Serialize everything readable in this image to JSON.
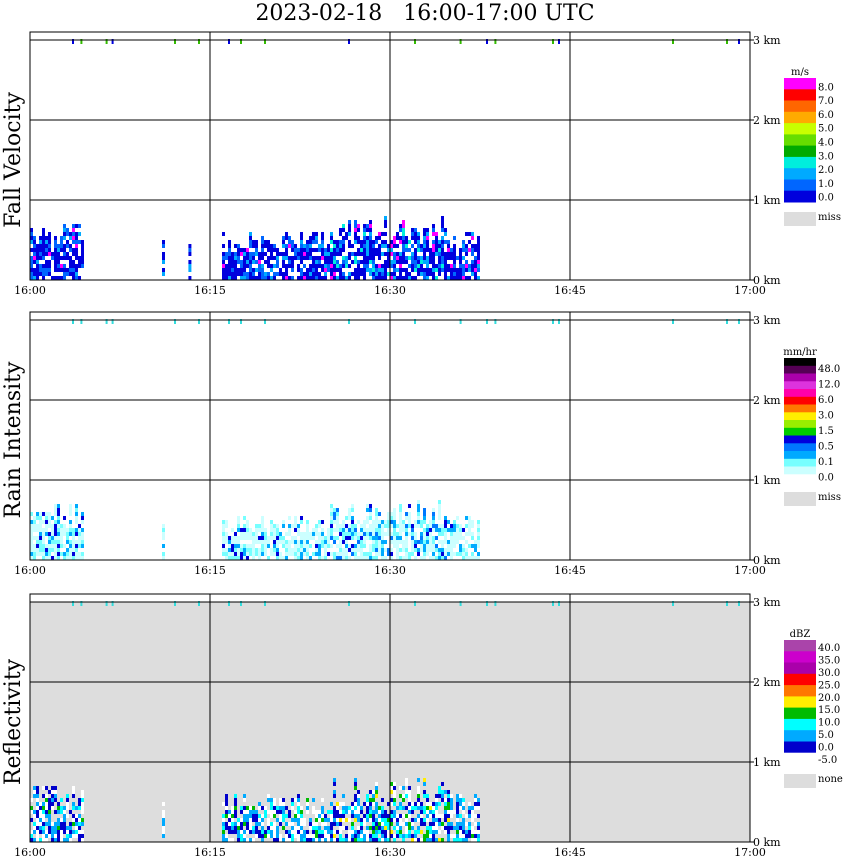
{
  "title": "2023-02-18   16:00-17:00 UTC",
  "chart_data": [
    {
      "type": "heatmap",
      "ylabel": "Fall Velocity",
      "x_ticks": [
        "16:00",
        "16:15",
        "16:30",
        "16:45",
        "17:00"
      ],
      "y_ticks": [
        "0 km",
        "1 km",
        "2 km",
        "3 km"
      ],
      "ylim_km": [
        0,
        3
      ],
      "xlim_minutes": [
        0,
        60
      ],
      "background": "#ffffff",
      "colorbar": {
        "unit": "m/s",
        "labels": [
          "8.0",
          "7.0",
          "6.0",
          "5.0",
          "4.0",
          "3.0",
          "2.0",
          "1.0",
          "0.0"
        ],
        "colors": [
          "#ff00ff",
          "#ff0000",
          "#ff6600",
          "#ffaa00",
          "#c8ff00",
          "#66dd00",
          "#00aa00",
          "#00eedd",
          "#00aaff",
          "#0066ff",
          "#0000dd"
        ],
        "missing_label": "miss",
        "missing_color": "#dddddd"
      },
      "echo_regions": [
        {
          "t0": 0.0,
          "t1": 4.5,
          "top_km": 0.72,
          "level": "low"
        },
        {
          "t0": 11.0,
          "t1": 11.2,
          "top_km": 0.5,
          "level": "low"
        },
        {
          "t0": 13.2,
          "t1": 13.4,
          "top_km": 0.55,
          "level": "low"
        },
        {
          "t0": 16.0,
          "t1": 25.0,
          "top_km": 0.6,
          "level": "low"
        },
        {
          "t0": 25.0,
          "t1": 35.0,
          "top_km": 0.8,
          "level": "mid"
        },
        {
          "t0": 35.0,
          "t1": 37.5,
          "top_km": 0.6,
          "level": "low"
        }
      ],
      "top_marks_minutes": [
        3.5,
        4.2,
        6.3,
        6.8,
        12.0,
        14.0,
        16.5,
        17.5,
        19.5,
        26.5,
        32.0,
        35.8,
        38.0,
        38.7,
        43.5,
        44.0,
        53.5,
        58.0,
        59.0
      ]
    },
    {
      "type": "heatmap",
      "ylabel": "Rain Intensity",
      "x_ticks": [
        "16:00",
        "16:15",
        "16:30",
        "16:45",
        "17:00"
      ],
      "y_ticks": [
        "0 km",
        "1 km",
        "2 km",
        "3 km"
      ],
      "ylim_km": [
        0,
        3
      ],
      "xlim_minutes": [
        0,
        60
      ],
      "background": "#ffffff",
      "colorbar": {
        "unit": "mm/hr",
        "labels": [
          "48.0",
          "12.0",
          "6.0",
          "3.0",
          "1.5",
          "0.5",
          "0.1",
          "0.0"
        ],
        "colors": [
          "#000000",
          "#550055",
          "#aa00aa",
          "#dd33dd",
          "#ff00aa",
          "#ff0000",
          "#ff7700",
          "#ffee00",
          "#99ee00",
          "#00cc00",
          "#0000dd",
          "#0077ff",
          "#00aaff",
          "#77ffff",
          "#ccffff",
          "#ffffff"
        ],
        "missing_label": "miss",
        "missing_color": "#dddddd"
      },
      "echo_regions": [
        {
          "t0": 0.0,
          "t1": 4.5,
          "top_km": 0.7,
          "level": "low"
        },
        {
          "t0": 11.0,
          "t1": 11.2,
          "top_km": 0.5,
          "level": "low"
        },
        {
          "t0": 16.0,
          "t1": 25.0,
          "top_km": 0.55,
          "level": "low"
        },
        {
          "t0": 25.0,
          "t1": 35.0,
          "top_km": 0.75,
          "level": "mid"
        },
        {
          "t0": 35.0,
          "t1": 37.5,
          "top_km": 0.55,
          "level": "low"
        }
      ],
      "top_marks_minutes": [
        3.5,
        4.2,
        6.3,
        6.8,
        12.0,
        14.0,
        16.5,
        17.5,
        19.5,
        26.5,
        32.0,
        35.8,
        38.0,
        38.7,
        43.5,
        44.0,
        53.5,
        58.0,
        59.0
      ]
    },
    {
      "type": "heatmap",
      "ylabel": "Reflectivity",
      "x_ticks": [
        "16:00",
        "16:15",
        "16:30",
        "16:45",
        "17:00"
      ],
      "y_ticks": [
        "0 km",
        "1 km",
        "2 km",
        "3 km"
      ],
      "ylim_km": [
        0,
        3
      ],
      "xlim_minutes": [
        0,
        60
      ],
      "background": "#dddddd",
      "colorbar": {
        "unit": "dBZ",
        "labels": [
          "40.0",
          "35.0",
          "30.0",
          "25.0",
          "20.0",
          "15.0",
          "10.0",
          "5.0",
          "0.0",
          "-5.0"
        ],
        "colors": [
          "#aa44aa",
          "#cc00cc",
          "#aa00aa",
          "#ff0000",
          "#ff7700",
          "#ffee00",
          "#00bb00",
          "#00ffff",
          "#00aaff",
          "#0000cc",
          "#ffffff"
        ],
        "missing_label": "none",
        "missing_color": "#dddddd"
      },
      "echo_regions": [
        {
          "t0": 0.0,
          "t1": 4.5,
          "top_km": 0.7,
          "level": "low"
        },
        {
          "t0": 11.0,
          "t1": 11.2,
          "top_km": 0.5,
          "level": "low"
        },
        {
          "t0": 16.0,
          "t1": 25.0,
          "top_km": 0.6,
          "level": "low"
        },
        {
          "t0": 25.0,
          "t1": 35.0,
          "top_km": 0.8,
          "level": "mid"
        },
        {
          "t0": 35.0,
          "t1": 37.5,
          "top_km": 0.6,
          "level": "low"
        }
      ],
      "top_marks_minutes": [
        3.5,
        4.2,
        6.3,
        6.8,
        12.0,
        14.0,
        16.5,
        17.5,
        19.5,
        26.5,
        32.0,
        35.8,
        38.0,
        38.7,
        43.5,
        44.0,
        53.5,
        58.0,
        59.0
      ]
    }
  ]
}
